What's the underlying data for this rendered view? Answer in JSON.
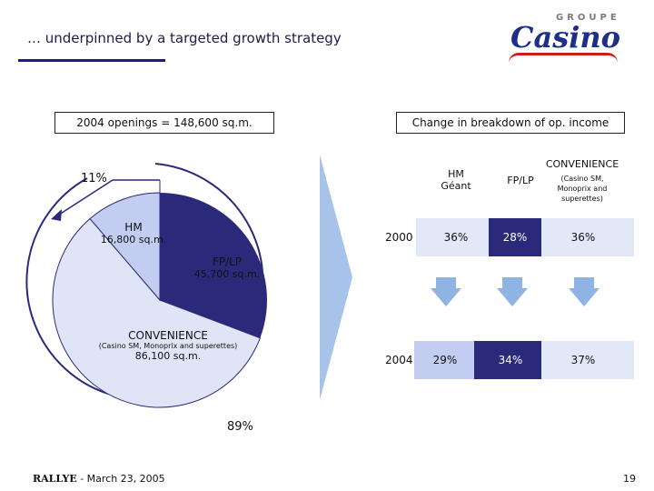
{
  "header": {
    "title": "… underpinned by a targeted growth strategy",
    "logo_small": "GROUPE",
    "logo_main": "Casino"
  },
  "left_panel": {
    "box_label": "2004 openings = 148,600 sq.m.",
    "pct_top": "11%",
    "pct_bottom": "89%",
    "segments": [
      {
        "name": "HM",
        "sub": "",
        "value": "16,800 sq.m."
      },
      {
        "name": "FP/LP",
        "sub": "",
        "value": "45,700 sq.m."
      },
      {
        "name": "CONVENIENCE",
        "sub": "(Casino SM, Monoprix and superettes)",
        "value": "86,100 sq.m."
      }
    ]
  },
  "right_panel": {
    "box_label": "Change in breakdown of op. income",
    "columns": [
      {
        "line1": "HM",
        "line2": "Géant",
        "sub": ""
      },
      {
        "line1": "FP/LP",
        "line2": "",
        "sub": ""
      },
      {
        "line1": "CONVENIENCE",
        "line2": "",
        "sub": "(Casino SM, Monoprix and superettes)"
      }
    ],
    "rows": [
      {
        "year": "2000",
        "values": [
          "36%",
          "28%",
          "36%"
        ]
      },
      {
        "year": "2004",
        "values": [
          "29%",
          "34%",
          "37%"
        ]
      }
    ]
  },
  "chart_data": {
    "type": "pie",
    "title": "2004 openings = 148,600 sq.m.",
    "categories": [
      "HM",
      "FP/LP",
      "CONVENIENCE"
    ],
    "values": [
      16800,
      45700,
      86100
    ],
    "unit": "sq.m.",
    "annotations": [
      "11%",
      "89%"
    ]
  },
  "colors": {
    "navy": "#2b2a7a",
    "light_blue": "#dfe4f7",
    "mid_blue": "#c2cdf1",
    "arrow_blue": "#a8c3ea",
    "down_arrow": "#8fb3e3"
  },
  "footer": {
    "brand": "RALLYE",
    "date": "- March 23, 2005",
    "page": "19"
  }
}
